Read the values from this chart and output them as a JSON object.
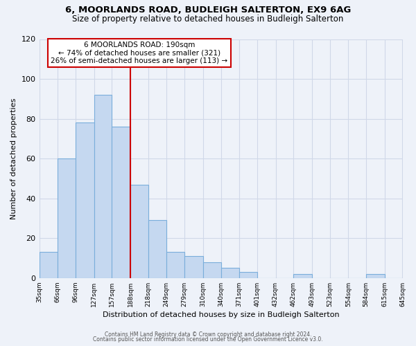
{
  "title": "6, MOORLANDS ROAD, BUDLEIGH SALTERTON, EX9 6AG",
  "subtitle": "Size of property relative to detached houses in Budleigh Salterton",
  "xlabel": "Distribution of detached houses by size in Budleigh Salterton",
  "ylabel": "Number of detached properties",
  "bar_color": "#c5d8f0",
  "bar_edge_color": "#7aaedb",
  "vline_x": 188,
  "vline_color": "#cc0000",
  "bin_edges": [
    35,
    66,
    96,
    127,
    157,
    188,
    218,
    249,
    279,
    310,
    340,
    371,
    401,
    432,
    462,
    493,
    523,
    554,
    584,
    615,
    645
  ],
  "counts": [
    13,
    60,
    78,
    92,
    76,
    47,
    29,
    13,
    11,
    8,
    5,
    3,
    0,
    0,
    2,
    0,
    0,
    0,
    2,
    0
  ],
  "tick_labels": [
    "35sqm",
    "66sqm",
    "96sqm",
    "127sqm",
    "157sqm",
    "188sqm",
    "218sqm",
    "249sqm",
    "279sqm",
    "310sqm",
    "340sqm",
    "371sqm",
    "401sqm",
    "432sqm",
    "462sqm",
    "493sqm",
    "523sqm",
    "554sqm",
    "584sqm",
    "615sqm",
    "645sqm"
  ],
  "ylim": [
    0,
    120
  ],
  "yticks": [
    0,
    20,
    40,
    60,
    80,
    100,
    120
  ],
  "annotation_title": "6 MOORLANDS ROAD: 190sqm",
  "annotation_line1": "← 74% of detached houses are smaller (321)",
  "annotation_line2": "26% of semi-detached houses are larger (113) →",
  "footer1": "Contains HM Land Registry data © Crown copyright and database right 2024.",
  "footer2": "Contains public sector information licensed under the Open Government Licence v3.0.",
  "background_color": "#eef2f9",
  "grid_color": "#d0d8e8"
}
